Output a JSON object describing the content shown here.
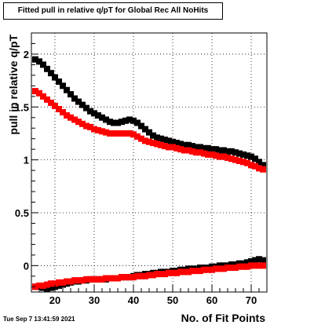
{
  "chart_data": {
    "type": "scatter",
    "title": "Fitted pull in relative q/pT for Global Rec All NoHits",
    "xlabel": "No. of Fit Points",
    "ylabel": "pull in relative q/pT",
    "xlim": [
      14,
      74
    ],
    "ylim": [
      -0.25,
      2.2
    ],
    "xticks": [
      20,
      30,
      40,
      50,
      60,
      70
    ],
    "xtick_labels": [
      "20",
      "30",
      "40",
      "50",
      "60",
      "70"
    ],
    "yticks": [
      0,
      0.5,
      1,
      1.5,
      2
    ],
    "ytick_labels": [
      "0",
      "0.5",
      "1",
      "1.5",
      "2"
    ],
    "grid": true,
    "series": [
      {
        "color": "#000000",
        "x": [
          15,
          16,
          17,
          18,
          19,
          20,
          21,
          22,
          23,
          24,
          25,
          26,
          27,
          28,
          29,
          30,
          31,
          32,
          33,
          34,
          35,
          36,
          37,
          38,
          39,
          40,
          41,
          42,
          43,
          44,
          45,
          46,
          47,
          48,
          49,
          50,
          51,
          52,
          53,
          54,
          55,
          56,
          57,
          58,
          59,
          60,
          61,
          62,
          63,
          64,
          65,
          66,
          67,
          68,
          69,
          70,
          71,
          72,
          73
        ],
        "y": [
          1.95,
          1.93,
          1.9,
          1.86,
          1.82,
          1.78,
          1.74,
          1.7,
          1.66,
          1.62,
          1.58,
          1.55,
          1.52,
          1.49,
          1.46,
          1.44,
          1.42,
          1.4,
          1.38,
          1.36,
          1.35,
          1.35,
          1.36,
          1.37,
          1.38,
          1.37,
          1.35,
          1.32,
          1.29,
          1.26,
          1.23,
          1.21,
          1.2,
          1.19,
          1.18,
          1.17,
          1.16,
          1.15,
          1.14,
          1.14,
          1.13,
          1.12,
          1.12,
          1.11,
          1.11,
          1.1,
          1.1,
          1.09,
          1.09,
          1.08,
          1.08,
          1.07,
          1.06,
          1.05,
          1.04,
          1.03,
          1.01,
          0.98,
          0.95
        ]
      },
      {
        "color": "#ff0000",
        "x": [
          15,
          16,
          17,
          18,
          19,
          20,
          21,
          22,
          23,
          24,
          25,
          26,
          27,
          28,
          29,
          30,
          31,
          32,
          33,
          34,
          35,
          36,
          37,
          38,
          39,
          40,
          41,
          42,
          43,
          44,
          45,
          46,
          47,
          48,
          49,
          50,
          51,
          52,
          53,
          54,
          55,
          56,
          57,
          58,
          59,
          60,
          61,
          62,
          63,
          64,
          65,
          66,
          67,
          68,
          69,
          70,
          71,
          72,
          73
        ],
        "y": [
          1.65,
          1.63,
          1.6,
          1.57,
          1.54,
          1.51,
          1.48,
          1.45,
          1.42,
          1.4,
          1.38,
          1.36,
          1.34,
          1.32,
          1.31,
          1.29,
          1.28,
          1.27,
          1.26,
          1.25,
          1.25,
          1.25,
          1.25,
          1.25,
          1.25,
          1.24,
          1.22,
          1.2,
          1.18,
          1.17,
          1.16,
          1.15,
          1.14,
          1.13,
          1.12,
          1.12,
          1.11,
          1.1,
          1.09,
          1.09,
          1.08,
          1.07,
          1.07,
          1.06,
          1.05,
          1.05,
          1.04,
          1.03,
          1.03,
          1.02,
          1.01,
          1.0,
          0.99,
          0.98,
          0.97,
          0.95,
          0.94,
          0.92,
          0.91
        ]
      },
      {
        "color": "#000000",
        "x": [
          15,
          16,
          17,
          18,
          19,
          20,
          21,
          22,
          23,
          24,
          25,
          26,
          27,
          28,
          29,
          30,
          31,
          32,
          33,
          34,
          35,
          36,
          37,
          38,
          39,
          40,
          41,
          42,
          43,
          44,
          45,
          46,
          47,
          48,
          49,
          50,
          51,
          52,
          53,
          54,
          55,
          56,
          57,
          58,
          59,
          60,
          61,
          62,
          63,
          64,
          65,
          66,
          67,
          68,
          69,
          70,
          71,
          72,
          73
        ],
        "y": [
          -0.2,
          -0.2,
          -0.21,
          -0.22,
          -0.21,
          -0.2,
          -0.19,
          -0.18,
          -0.17,
          -0.16,
          -0.15,
          -0.15,
          -0.14,
          -0.14,
          -0.13,
          -0.13,
          -0.13,
          -0.13,
          -0.13,
          -0.12,
          -0.12,
          -0.12,
          -0.11,
          -0.11,
          -0.11,
          -0.1,
          -0.09,
          -0.09,
          -0.08,
          -0.08,
          -0.07,
          -0.07,
          -0.06,
          -0.06,
          -0.06,
          -0.05,
          -0.05,
          -0.04,
          -0.04,
          -0.03,
          -0.03,
          -0.03,
          -0.02,
          -0.02,
          -0.02,
          -0.01,
          -0.01,
          0.0,
          0.0,
          0.0,
          0.01,
          0.01,
          0.02,
          0.02,
          0.03,
          0.04,
          0.05,
          0.06,
          0.05
        ]
      },
      {
        "color": "#ff0000",
        "x": [
          15,
          16,
          17,
          18,
          19,
          20,
          21,
          22,
          23,
          24,
          25,
          26,
          27,
          28,
          29,
          30,
          31,
          32,
          33,
          34,
          35,
          36,
          37,
          38,
          39,
          40,
          41,
          42,
          43,
          44,
          45,
          46,
          47,
          48,
          49,
          50,
          51,
          52,
          53,
          54,
          55,
          56,
          57,
          58,
          59,
          60,
          61,
          62,
          63,
          64,
          65,
          66,
          67,
          68,
          69,
          70,
          71,
          72,
          73
        ],
        "y": [
          -0.2,
          -0.19,
          -0.19,
          -0.18,
          -0.17,
          -0.17,
          -0.16,
          -0.16,
          -0.15,
          -0.15,
          -0.14,
          -0.14,
          -0.14,
          -0.13,
          -0.13,
          -0.13,
          -0.13,
          -0.13,
          -0.12,
          -0.12,
          -0.12,
          -0.12,
          -0.11,
          -0.11,
          -0.11,
          -0.11,
          -0.1,
          -0.1,
          -0.1,
          -0.09,
          -0.09,
          -0.08,
          -0.08,
          -0.08,
          -0.07,
          -0.07,
          -0.07,
          -0.06,
          -0.06,
          -0.06,
          -0.05,
          -0.05,
          -0.05,
          -0.04,
          -0.04,
          -0.04,
          -0.03,
          -0.03,
          -0.03,
          -0.02,
          -0.02,
          -0.02,
          -0.01,
          -0.01,
          -0.01,
          0.0,
          0.0,
          0.0,
          0.0
        ]
      }
    ]
  },
  "footer": {
    "timestamp": "Tue Sep  7 13:41:59 2021"
  }
}
